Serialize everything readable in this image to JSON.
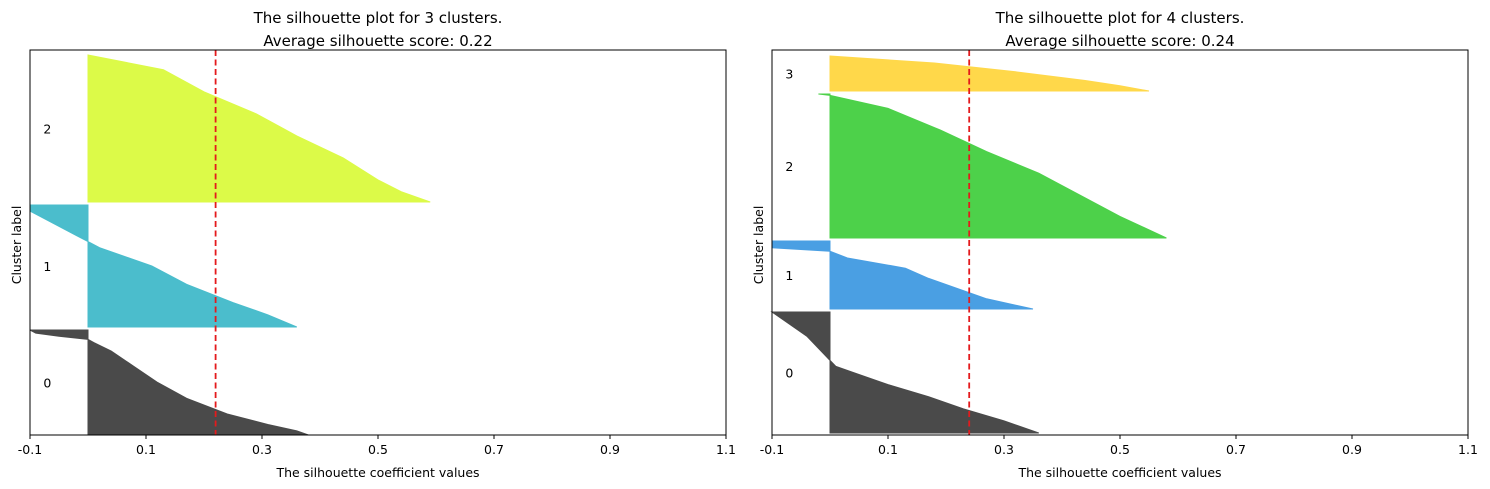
{
  "chart_data": [
    {
      "type": "area",
      "title": "The silhouette plot for 3 clusters.",
      "subtitle": "Average silhouette score: 0.22",
      "xlabel": "The silhouette coefficient values",
      "ylabel": "Cluster label",
      "xlim": [
        -0.1,
        1.1
      ],
      "xticks": [
        "-0.1",
        "0.1",
        "0.3",
        "0.5",
        "0.7",
        "0.9",
        "1.1"
      ],
      "yticks": [],
      "average_score": 0.22,
      "clusters": [
        {
          "label": "0",
          "color": "#4a4a4a",
          "profile": [
            [
              0,
              -0.1
            ],
            [
              0.03,
              -0.09
            ],
            [
              0.06,
              -0.05
            ],
            [
              0.09,
              0.0
            ],
            [
              0.12,
              0.01
            ],
            [
              0.2,
              0.04
            ],
            [
              0.35,
              0.08
            ],
            [
              0.5,
              0.12
            ],
            [
              0.65,
              0.17
            ],
            [
              0.8,
              0.24
            ],
            [
              0.9,
              0.31
            ],
            [
              0.96,
              0.36
            ],
            [
              1,
              0.38
            ]
          ]
        },
        {
          "label": "1",
          "color": "#4bbdcc",
          "profile": [
            [
              0,
              -0.1
            ],
            [
              0.05,
              -0.1
            ],
            [
              0.15,
              -0.06
            ],
            [
              0.25,
              -0.02
            ],
            [
              0.3,
              0.0
            ],
            [
              0.35,
              0.02
            ],
            [
              0.5,
              0.11
            ],
            [
              0.65,
              0.17
            ],
            [
              0.8,
              0.25
            ],
            [
              0.9,
              0.31
            ],
            [
              1,
              0.36
            ]
          ]
        },
        {
          "label": "2",
          "color": "#dcfa48",
          "profile": [
            [
              0,
              0.0
            ],
            [
              0.1,
              0.13
            ],
            [
              0.25,
              0.2
            ],
            [
              0.4,
              0.29
            ],
            [
              0.55,
              0.36
            ],
            [
              0.7,
              0.44
            ],
            [
              0.85,
              0.5
            ],
            [
              0.93,
              0.54
            ],
            [
              1,
              0.59
            ]
          ]
        }
      ]
    },
    {
      "type": "area",
      "title": "The silhouette plot for 4 clusters.",
      "subtitle": "Average silhouette score: 0.24",
      "xlabel": "The silhouette coefficient values",
      "ylabel": "Cluster label",
      "xlim": [
        -0.1,
        1.1
      ],
      "xticks": [
        "-0.1",
        "0.1",
        "0.3",
        "0.5",
        "0.7",
        "0.9",
        "1.1"
      ],
      "yticks": [],
      "average_score": 0.24,
      "clusters": [
        {
          "label": "0",
          "color": "#4a4a4a",
          "profile": [
            [
              0,
              -0.1
            ],
            [
              0.1,
              -0.07
            ],
            [
              0.2,
              -0.04
            ],
            [
              0.3,
              -0.02
            ],
            [
              0.4,
              0.0
            ],
            [
              0.45,
              0.01
            ],
            [
              0.5,
              0.04
            ],
            [
              0.6,
              0.1
            ],
            [
              0.7,
              0.17
            ],
            [
              0.8,
              0.23
            ],
            [
              0.9,
              0.3
            ],
            [
              1,
              0.36
            ]
          ]
        },
        {
          "label": "1",
          "color": "#4a9fe3",
          "profile": [
            [
              0,
              -0.1
            ],
            [
              0.1,
              -0.1
            ],
            [
              0.15,
              0.0
            ],
            [
              0.25,
              0.03
            ],
            [
              0.4,
              0.13
            ],
            [
              0.55,
              0.17
            ],
            [
              0.7,
              0.22
            ],
            [
              0.85,
              0.27
            ],
            [
              1,
              0.35
            ]
          ]
        },
        {
          "label": "2",
          "color": "#4dd14a",
          "profile": [
            [
              0,
              -0.02
            ],
            [
              0.01,
              0.0
            ],
            [
              0.1,
              0.1
            ],
            [
              0.25,
              0.19
            ],
            [
              0.4,
              0.27
            ],
            [
              0.55,
              0.36
            ],
            [
              0.7,
              0.43
            ],
            [
              0.85,
              0.5
            ],
            [
              1,
              0.58
            ]
          ]
        },
        {
          "label": "3",
          "color": "#ffd84a",
          "profile": [
            [
              0,
              0.0
            ],
            [
              0.2,
              0.18
            ],
            [
              0.45,
              0.32
            ],
            [
              0.7,
              0.44
            ],
            [
              0.85,
              0.5
            ],
            [
              1,
              0.55
            ]
          ]
        }
      ]
    }
  ]
}
